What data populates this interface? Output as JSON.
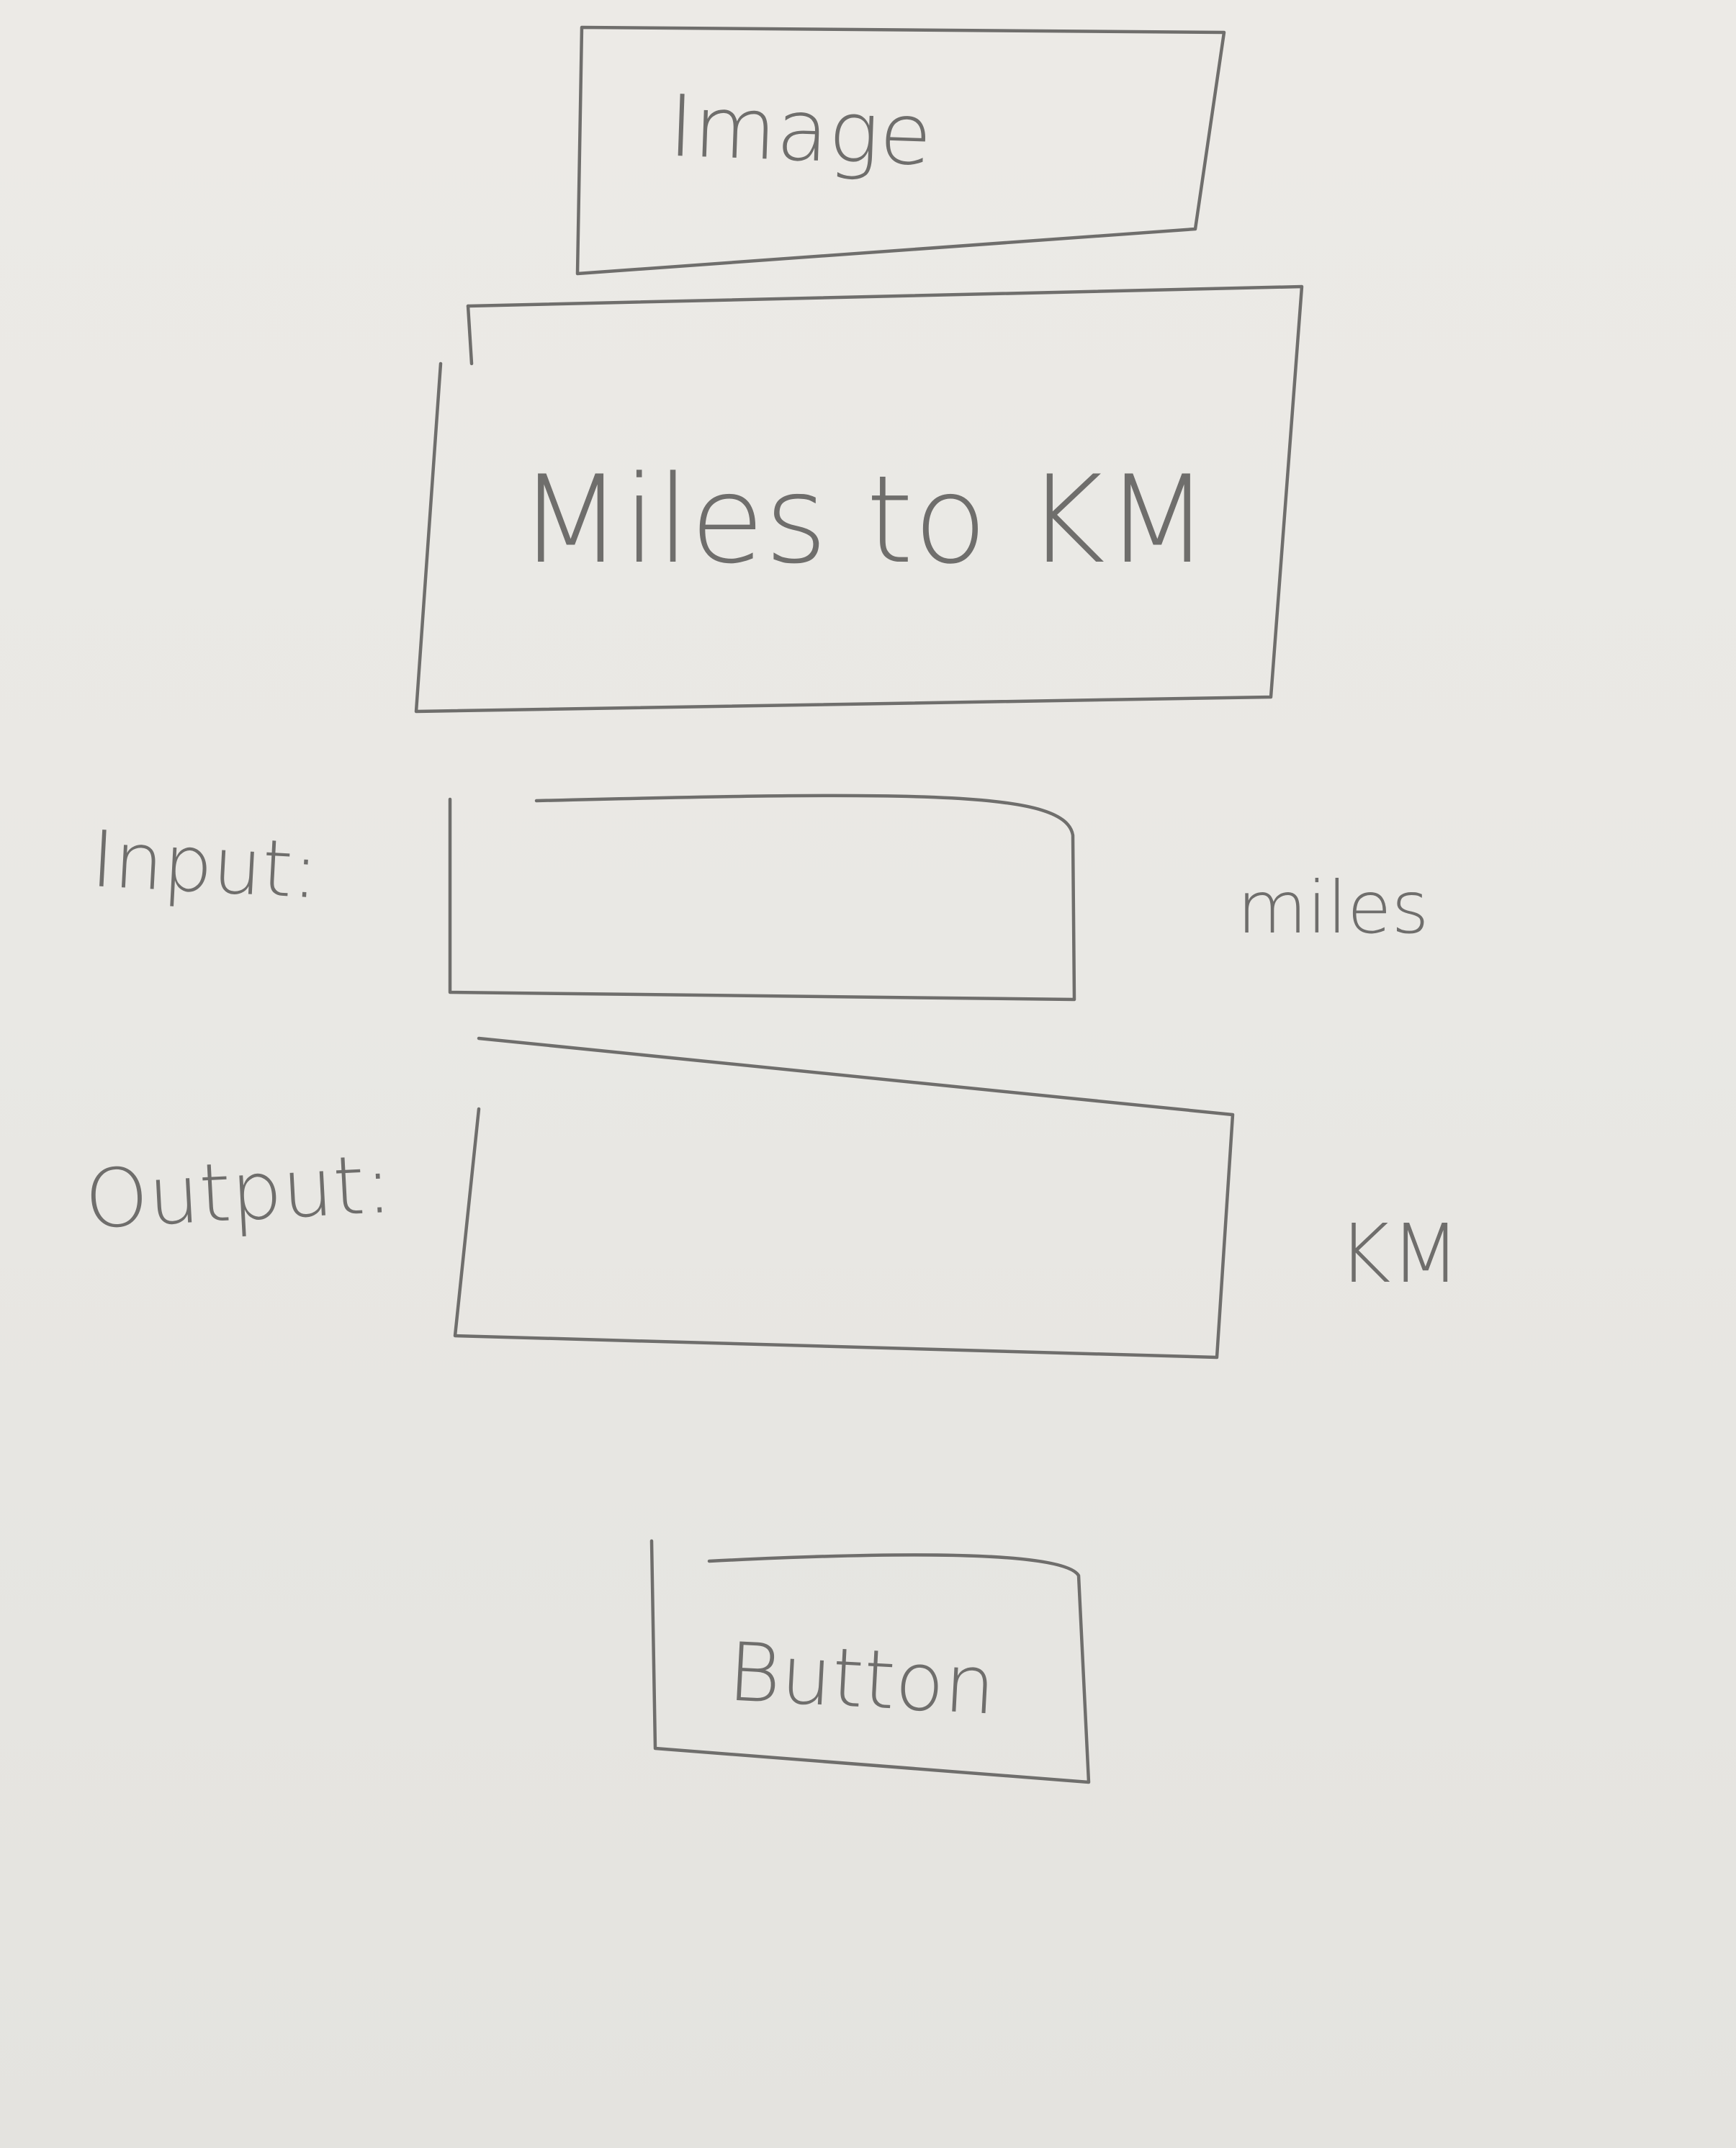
{
  "image_placeholder": {
    "label": "Image"
  },
  "title": {
    "text": "Miles to KM"
  },
  "input": {
    "label": "Input:",
    "unit": "miles",
    "value": ""
  },
  "output": {
    "label": "Output:",
    "unit": "KM",
    "value": ""
  },
  "button": {
    "label": "Button"
  }
}
